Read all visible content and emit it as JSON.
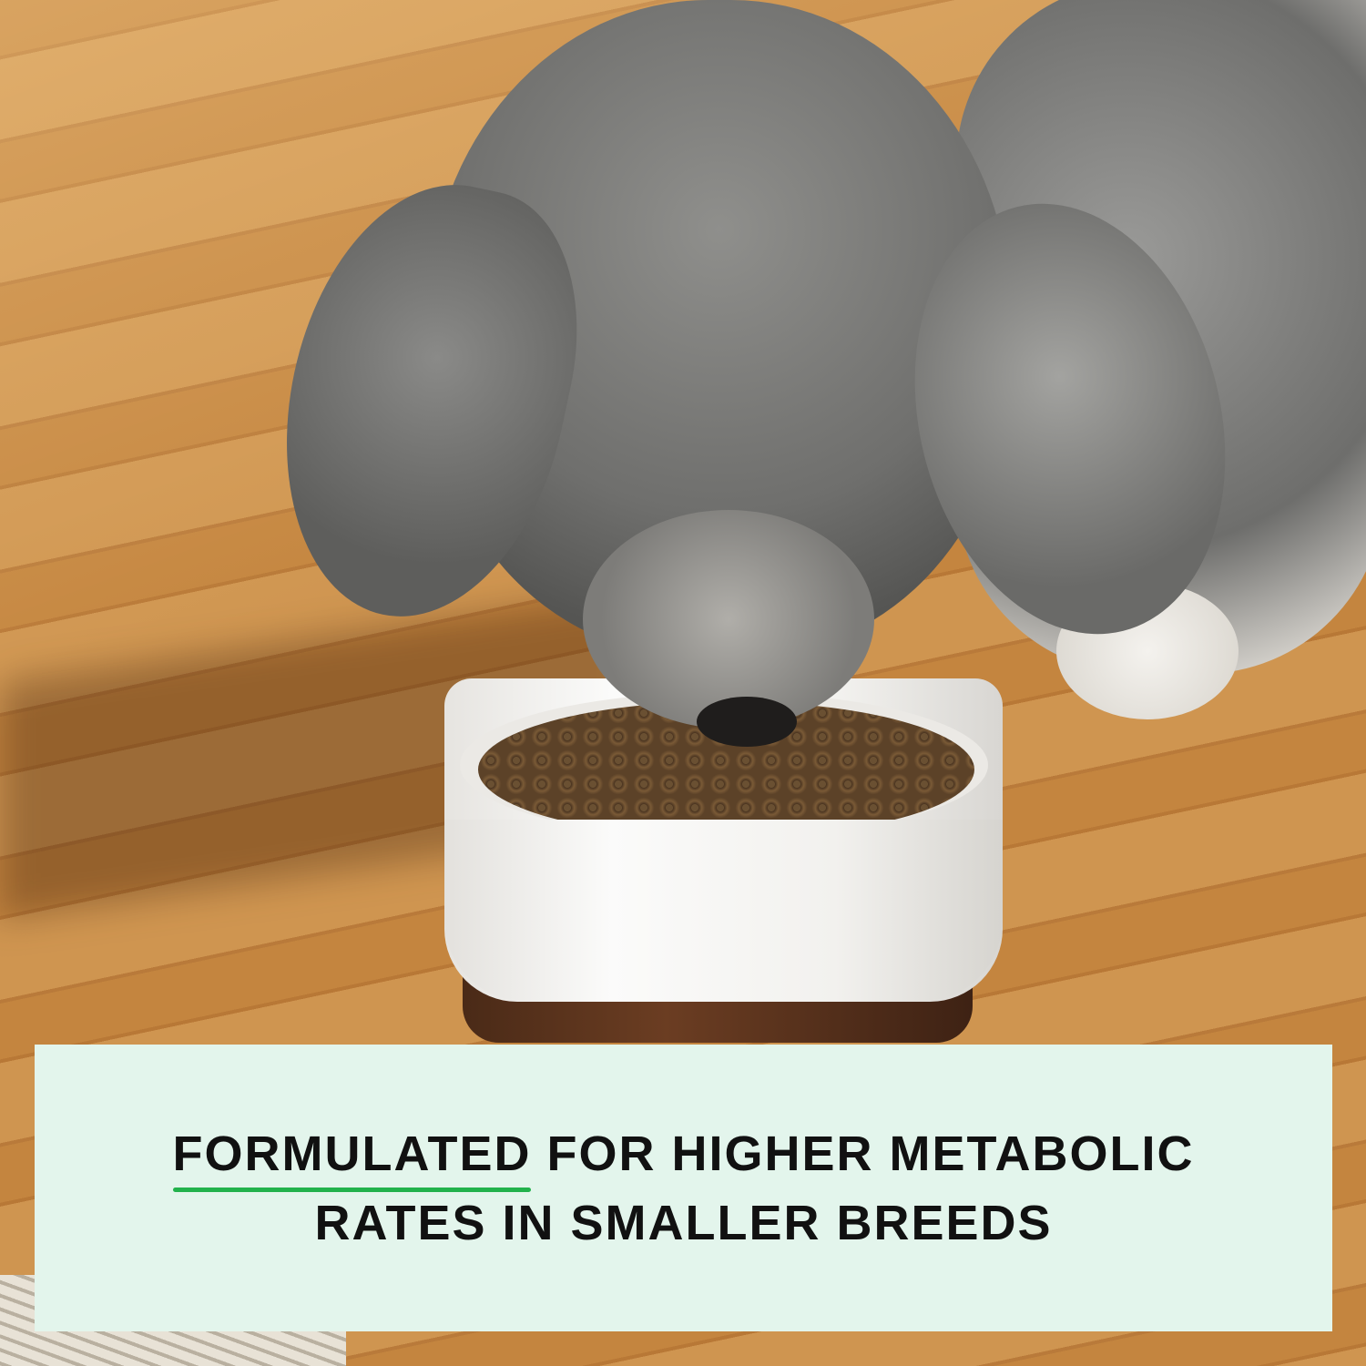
{
  "banner": {
    "highlight": "FORMULATED",
    "line1_rest": " FOR HIGHER METABOLIC",
    "line2": "RATES IN SMALLER BREEDS",
    "background_color": "#e3f5ec",
    "underline_color": "#22b24c"
  }
}
